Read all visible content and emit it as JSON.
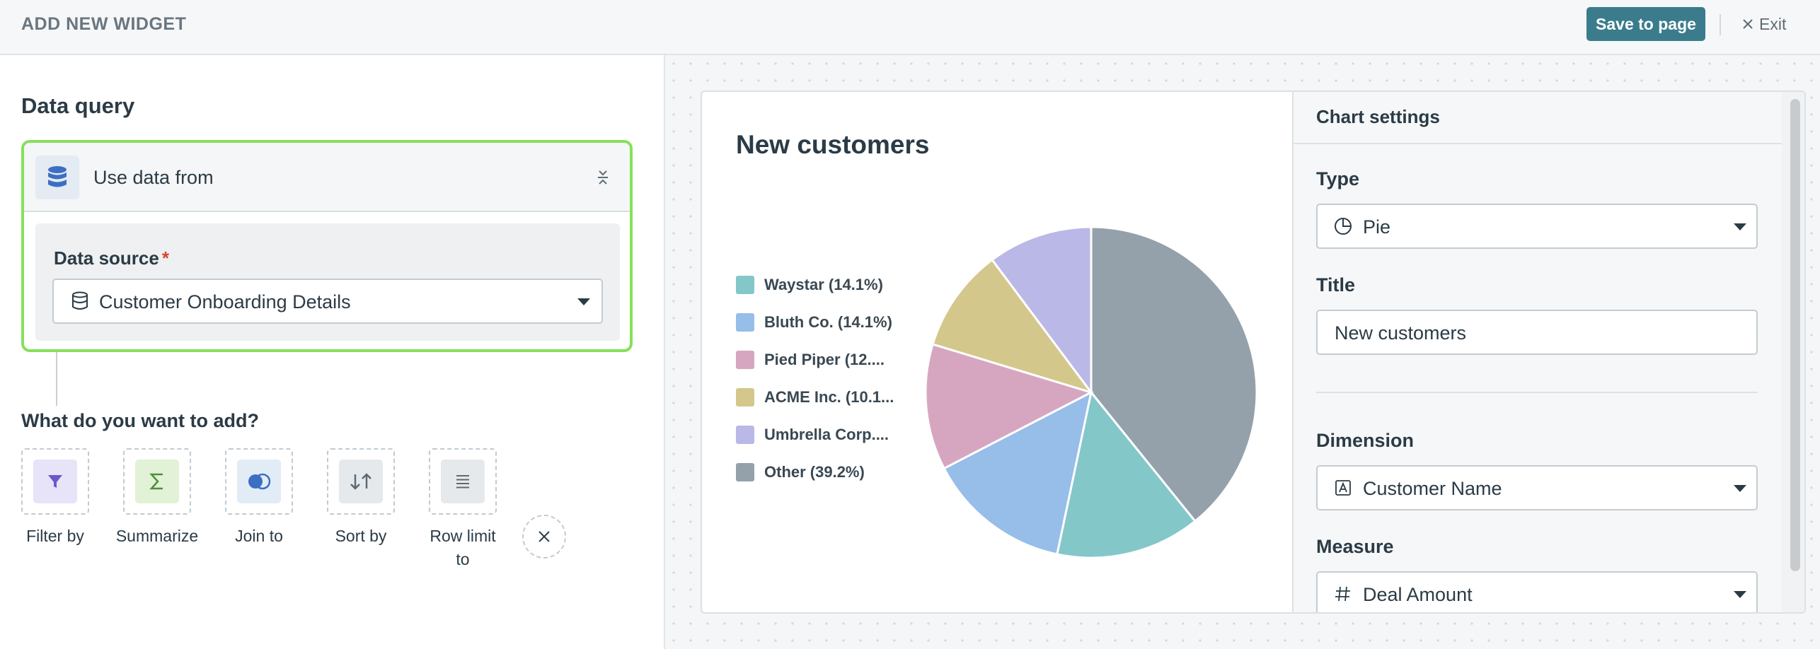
{
  "header": {
    "title": "ADD NEW WIDGET",
    "save_label": "Save to page",
    "exit_label": "Exit"
  },
  "query": {
    "title": "Data query",
    "use_data_label": "Use data from",
    "data_source_label": "Data source",
    "required_marker": "*",
    "data_source_value": "Customer Onboarding Details"
  },
  "add": {
    "title": "What do you want to add?",
    "items": [
      {
        "label": "Filter by",
        "icon": "filter-icon",
        "bg": "#e7e3f8",
        "fg": "#6b58c9"
      },
      {
        "label": "Summarize",
        "icon": "sigma-icon",
        "bg": "#e1f2d6",
        "fg": "#4d8f3a"
      },
      {
        "label": "Join to",
        "icon": "join-icon",
        "bg": "#e2ecf7",
        "fg": "#3c6fc2"
      },
      {
        "label": "Sort by",
        "icon": "sort-icon",
        "bg": "#e6e9eb",
        "fg": "#5c6a73"
      },
      {
        "label": "Row limit to",
        "icon": "row-limit-icon",
        "bg": "#e6e9eb",
        "fg": "#5c6a73"
      }
    ],
    "close_icon": "close-icon"
  },
  "chart_data": {
    "type": "pie",
    "title": "New customers",
    "slices": [
      {
        "label": "Other (39.2%)",
        "value": 39.2,
        "color": "#94a1aa"
      },
      {
        "label": "Waystar (14.1%)",
        "value": 14.1,
        "color": "#83c7c9"
      },
      {
        "label": "Bluth Co. (14.1%)",
        "value": 14.1,
        "color": "#97bde9"
      },
      {
        "label": "Pied Piper (12....",
        "value": 12.3,
        "color": "#d6a6c1"
      },
      {
        "label": "ACME Inc. (10.1...",
        "value": 10.1,
        "color": "#d4c78b"
      },
      {
        "label": "Umbrella Corp....",
        "value": 10.2,
        "color": "#b9b8e6"
      }
    ],
    "legend_order": [
      1,
      2,
      3,
      4,
      5,
      0
    ],
    "legend_placement": "left"
  },
  "settings": {
    "title": "Chart settings",
    "type_label": "Type",
    "type_value": "Pie",
    "title_label": "Title",
    "title_value": "New customers",
    "dimension_label": "Dimension",
    "dimension_value": "Customer Name",
    "measure_label": "Measure",
    "measure_value": "Deal Amount"
  },
  "colors": {
    "accent": "#3a7c8c",
    "focus_border": "#86e05a",
    "required": "#d9432f"
  }
}
